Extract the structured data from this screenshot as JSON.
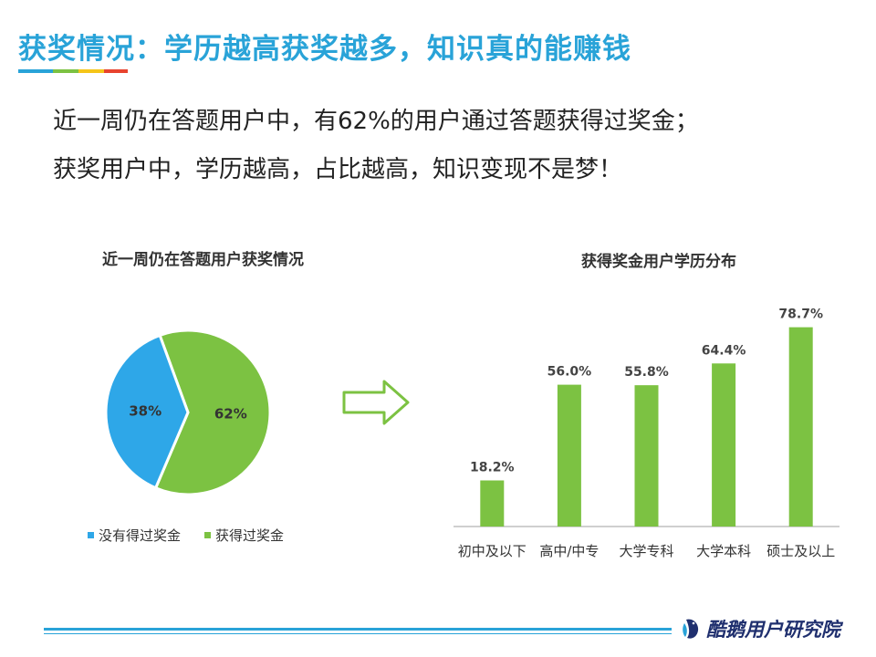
{
  "header": {
    "title": "获奖情况：学历越高获奖越多，知识真的能赚钱",
    "title_color": "#29a3d8",
    "underline_colors": [
      "#29a3d8",
      "#7cc242",
      "#f5c518",
      "#e8432e"
    ]
  },
  "summary": {
    "line1": "近一周仍在答题用户中，有62%的用户通过答题获得过奖金；",
    "line2": "获奖用户中，学历越高，占比越高，知识变现不是梦！"
  },
  "footer": {
    "brand": "酷鹅用户研究院",
    "line_color": "#29a3d8"
  },
  "chart_data": [
    {
      "type": "pie",
      "title": "近一周仍在答题用户获奖情况",
      "categories": [
        "没有得过奖金",
        "获得过奖金"
      ],
      "values": [
        38,
        62
      ],
      "labels": [
        "38%",
        "62%"
      ],
      "colors": [
        "#2ea7e8",
        "#7cc242"
      ],
      "legend_position": "bottom"
    },
    {
      "type": "bar",
      "title": "获得奖金用户学历分布",
      "categories": [
        "初中及以下",
        "高中/中专",
        "大学专科",
        "大学本科",
        "硕士及以上"
      ],
      "values": [
        18.2,
        56.0,
        55.8,
        64.4,
        78.7
      ],
      "labels": [
        "18.2%",
        "56.0%",
        "55.8%",
        "64.4%",
        "78.7%"
      ],
      "color": "#7cc242",
      "ylim": [
        0,
        80
      ],
      "grid": false
    }
  ]
}
